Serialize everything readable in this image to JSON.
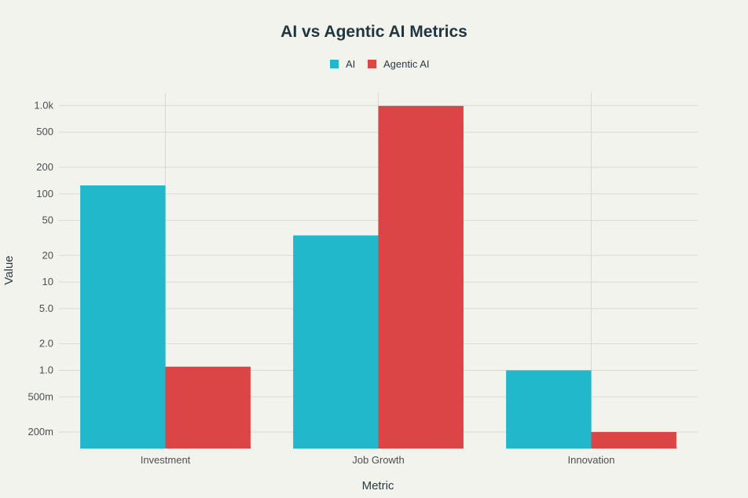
{
  "chart_data": {
    "type": "bar",
    "title": "AI vs Agentic AI Metrics",
    "xlabel": "Metric",
    "ylabel": "Value",
    "yscale": "log",
    "ylim": [
      0.13,
      1400
    ],
    "categories": [
      "Investment",
      "Job Growth",
      "Innovation"
    ],
    "series": [
      {
        "name": "AI",
        "color": "#21b8cc",
        "values": [
          124.5,
          33.8,
          1.0
        ]
      },
      {
        "name": "Agentic AI",
        "color": "#db4546",
        "values": [
          1.1,
          990,
          0.2
        ]
      }
    ],
    "yticks": [
      {
        "value": 1000,
        "label": "1.0k"
      },
      {
        "value": 500,
        "label": "500"
      },
      {
        "value": 200,
        "label": "200"
      },
      {
        "value": 100,
        "label": "100"
      },
      {
        "value": 50,
        "label": "50"
      },
      {
        "value": 20,
        "label": "20"
      },
      {
        "value": 10,
        "label": "10"
      },
      {
        "value": 5,
        "label": "5.0"
      },
      {
        "value": 2,
        "label": "2.0"
      },
      {
        "value": 1,
        "label": "1.0"
      },
      {
        "value": 0.5,
        "label": "500m"
      },
      {
        "value": 0.2,
        "label": "200m"
      }
    ],
    "legend_position": "top-center",
    "grid": true
  }
}
